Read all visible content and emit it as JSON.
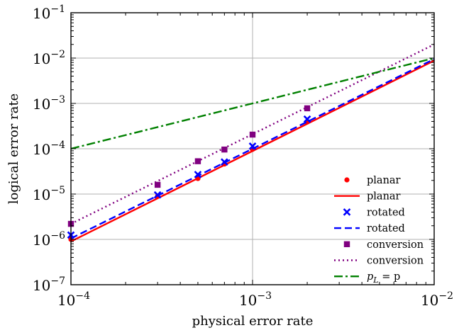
{
  "chart_data": {
    "type": "scatter",
    "title": "",
    "xlabel": "physical error rate",
    "ylabel": "logical error rate",
    "xscale": "log",
    "yscale": "log",
    "xlim": [
      0.0001,
      0.01
    ],
    "ylim": [
      1e-07,
      0.1
    ],
    "x_ticks": [
      {
        "value": 0.0001,
        "base": "10",
        "exp": "−4"
      },
      {
        "value": 0.001,
        "base": "10",
        "exp": "−3"
      },
      {
        "value": 0.01,
        "base": "10",
        "exp": "−2"
      }
    ],
    "y_ticks": [
      {
        "value": 1e-07,
        "base": "10",
        "exp": "−7"
      },
      {
        "value": 1e-06,
        "base": "10",
        "exp": "−6"
      },
      {
        "value": 1e-05,
        "base": "10",
        "exp": "−5"
      },
      {
        "value": 0.0001,
        "base": "10",
        "exp": "−4"
      },
      {
        "value": 0.001,
        "base": "10",
        "exp": "−3"
      },
      {
        "value": 0.01,
        "base": "10",
        "exp": "−2"
      },
      {
        "value": 0.1,
        "base": "10",
        "exp": "−1"
      }
    ],
    "grid": true,
    "legend_position": "bottom-right",
    "series": [
      {
        "name": "planar",
        "kind": "points",
        "marker": "circle",
        "color": "#ff0000",
        "x": [
          0.0001,
          0.0003,
          0.0005,
          0.0007,
          0.001,
          0.002
        ],
        "y": [
          1e-06,
          9e-06,
          2.2e-05,
          4.6e-05,
          9.7e-05,
          0.00039
        ]
      },
      {
        "name": "planar",
        "kind": "line",
        "style": "solid",
        "color": "#ff0000",
        "x": [
          0.0001,
          0.01
        ],
        "y": [
          9e-07,
          0.0088
        ]
      },
      {
        "name": "rotated",
        "kind": "points",
        "marker": "x",
        "color": "#0000ff",
        "x": [
          0.0001,
          0.0003,
          0.0005,
          0.0007,
          0.001,
          0.002
        ],
        "y": [
          1.25e-06,
          9.6e-06,
          2.7e-05,
          5.1e-05,
          0.000114,
          0.00045
        ]
      },
      {
        "name": "rotated",
        "kind": "line",
        "style": "dashed",
        "color": "#0000ff",
        "x": [
          0.0001,
          0.01
        ],
        "y": [
          1.05e-06,
          0.0095
        ]
      },
      {
        "name": "conversion",
        "kind": "points",
        "marker": "square",
        "color": "#800080",
        "x": [
          0.0001,
          0.0003,
          0.0005,
          0.0007,
          0.001,
          0.002
        ],
        "y": [
          2.2e-06,
          1.6e-05,
          5.3e-05,
          9.6e-05,
          0.000205,
          0.00078
        ]
      },
      {
        "name": "conversion",
        "kind": "line",
        "style": "dotted",
        "color": "#800080",
        "x": [
          0.0001,
          0.01
        ],
        "y": [
          2.2e-06,
          0.02
        ]
      },
      {
        "name": "pL = p",
        "label_main": "p",
        "label_sub": "L",
        "label_rest": " = p",
        "kind": "line",
        "style": "dashdot",
        "color": "#008000",
        "x": [
          0.0001,
          0.01
        ],
        "y": [
          0.0001,
          0.01
        ]
      }
    ]
  }
}
